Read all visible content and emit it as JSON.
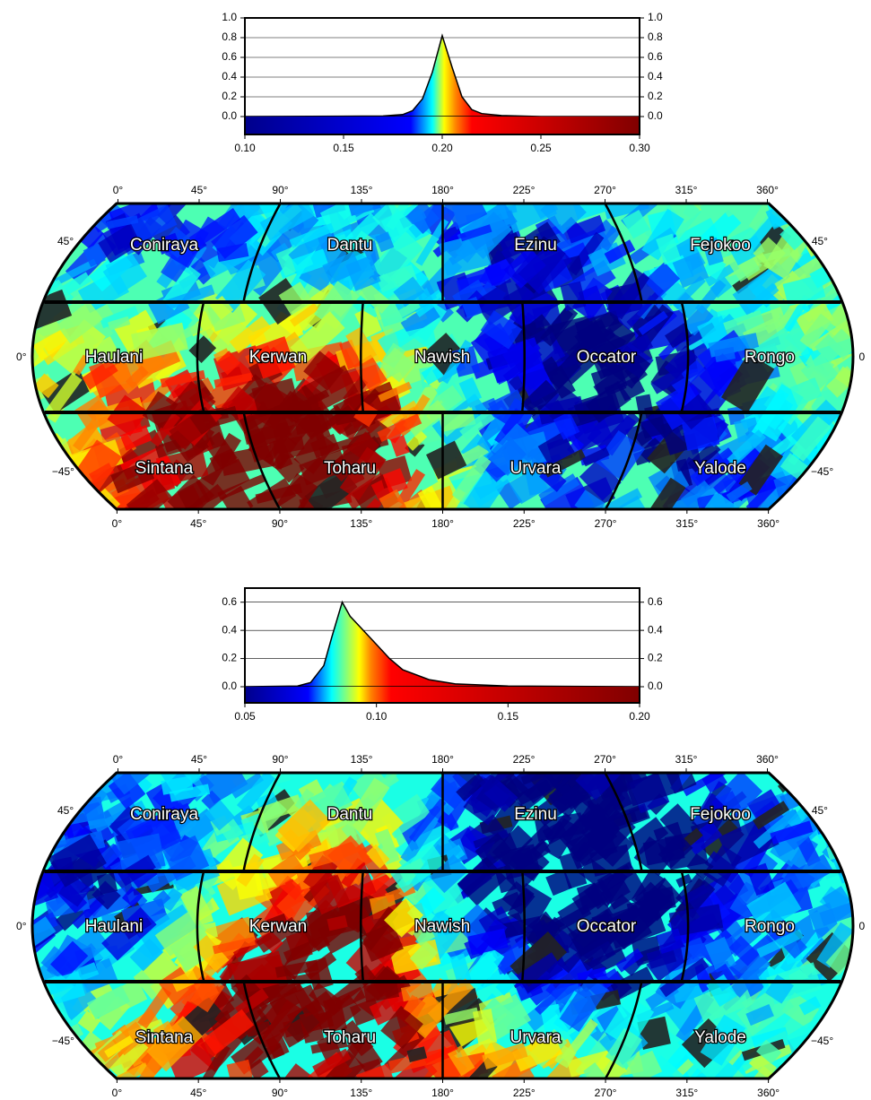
{
  "chart_data": [
    {
      "type": "area",
      "x": [
        0.1,
        0.17,
        0.18,
        0.185,
        0.19,
        0.195,
        0.2,
        0.205,
        0.21,
        0.215,
        0.22,
        0.23,
        0.25,
        0.3
      ],
      "values": [
        0,
        0.005,
        0.02,
        0.06,
        0.18,
        0.45,
        0.82,
        0.5,
        0.2,
        0.07,
        0.03,
        0.01,
        0,
        0
      ],
      "xlim": [
        0.1,
        0.3
      ],
      "ylim": [
        0,
        1
      ],
      "xticks": [
        {
          "value": 0.1,
          "label": "0.10"
        },
        0.15,
        {
          "value": 0.2,
          "label": "0.20"
        },
        0.25,
        {
          "value": 0.3,
          "label": "0.30"
        }
      ],
      "yticks": [
        {
          "value": 0,
          "label": "0.0"
        },
        0.2,
        0.4,
        0.6,
        0.8,
        {
          "value": 1,
          "label": "1.0"
        }
      ],
      "grid": true
    },
    {
      "type": "area",
      "x": [
        0.05,
        0.07,
        0.075,
        0.08,
        0.083,
        0.087,
        0.09,
        0.095,
        0.1,
        0.105,
        0.11,
        0.12,
        0.13,
        0.15,
        0.2
      ],
      "values": [
        0,
        0.005,
        0.03,
        0.15,
        0.35,
        0.6,
        0.5,
        0.4,
        0.3,
        0.2,
        0.12,
        0.05,
        0.02,
        0.005,
        0
      ],
      "xlim": [
        0.05,
        0.2
      ],
      "ylim": [
        0,
        0.7
      ],
      "xticks": [
        0.05,
        {
          "value": 0.1,
          "label": "0.10"
        },
        0.15,
        {
          "value": 0.2,
          "label": "0.20"
        }
      ],
      "yticks": [
        {
          "value": 0,
          "label": "0.0"
        },
        0.2,
        0.4,
        0.6
      ],
      "grid": true
    }
  ],
  "maps": [
    {
      "lon_labels_top": [
        "0°",
        "45°",
        "90°",
        "135°",
        "180°",
        "225°",
        "270°",
        "315°",
        "360°"
      ],
      "lon_labels_bottom": [
        "0°",
        "45°",
        "90°",
        "135°",
        "180°",
        "225°",
        "270°",
        "315°",
        "360°"
      ],
      "lat_labels_left": [
        "45°",
        "0°",
        "−45°"
      ],
      "lat_labels_right": [
        "45°",
        "0",
        "−45°"
      ],
      "quadrangles": [
        "Coniraya",
        "Dantu",
        "Ezinu",
        "Fejokoo",
        "Haulani",
        "Kerwan",
        "Nawish",
        "Occator",
        "Rongo",
        "Sintana",
        "Toharu",
        "Urvara",
        "Yalode"
      ]
    },
    {
      "lon_labels_top": [
        "0°",
        "45°",
        "90°",
        "135°",
        "180°",
        "225°",
        "270°",
        "315°",
        "360°"
      ],
      "lon_labels_bottom": [
        "0°",
        "45°",
        "90°",
        "135°",
        "180°",
        "225°",
        "270°",
        "315°",
        "360°"
      ],
      "lat_labels_left": [
        "45°",
        "0°",
        "−45°"
      ],
      "lat_labels_right": [
        "45°",
        "0",
        "−45°"
      ],
      "quadrangles": [
        "Coniraya",
        "Dantu",
        "Ezinu",
        "Fejokoo",
        "Haulani",
        "Kerwan",
        "Nawish",
        "Occator",
        "Rongo",
        "Sintana",
        "Toharu",
        "Urvara",
        "Yalode"
      ]
    }
  ]
}
